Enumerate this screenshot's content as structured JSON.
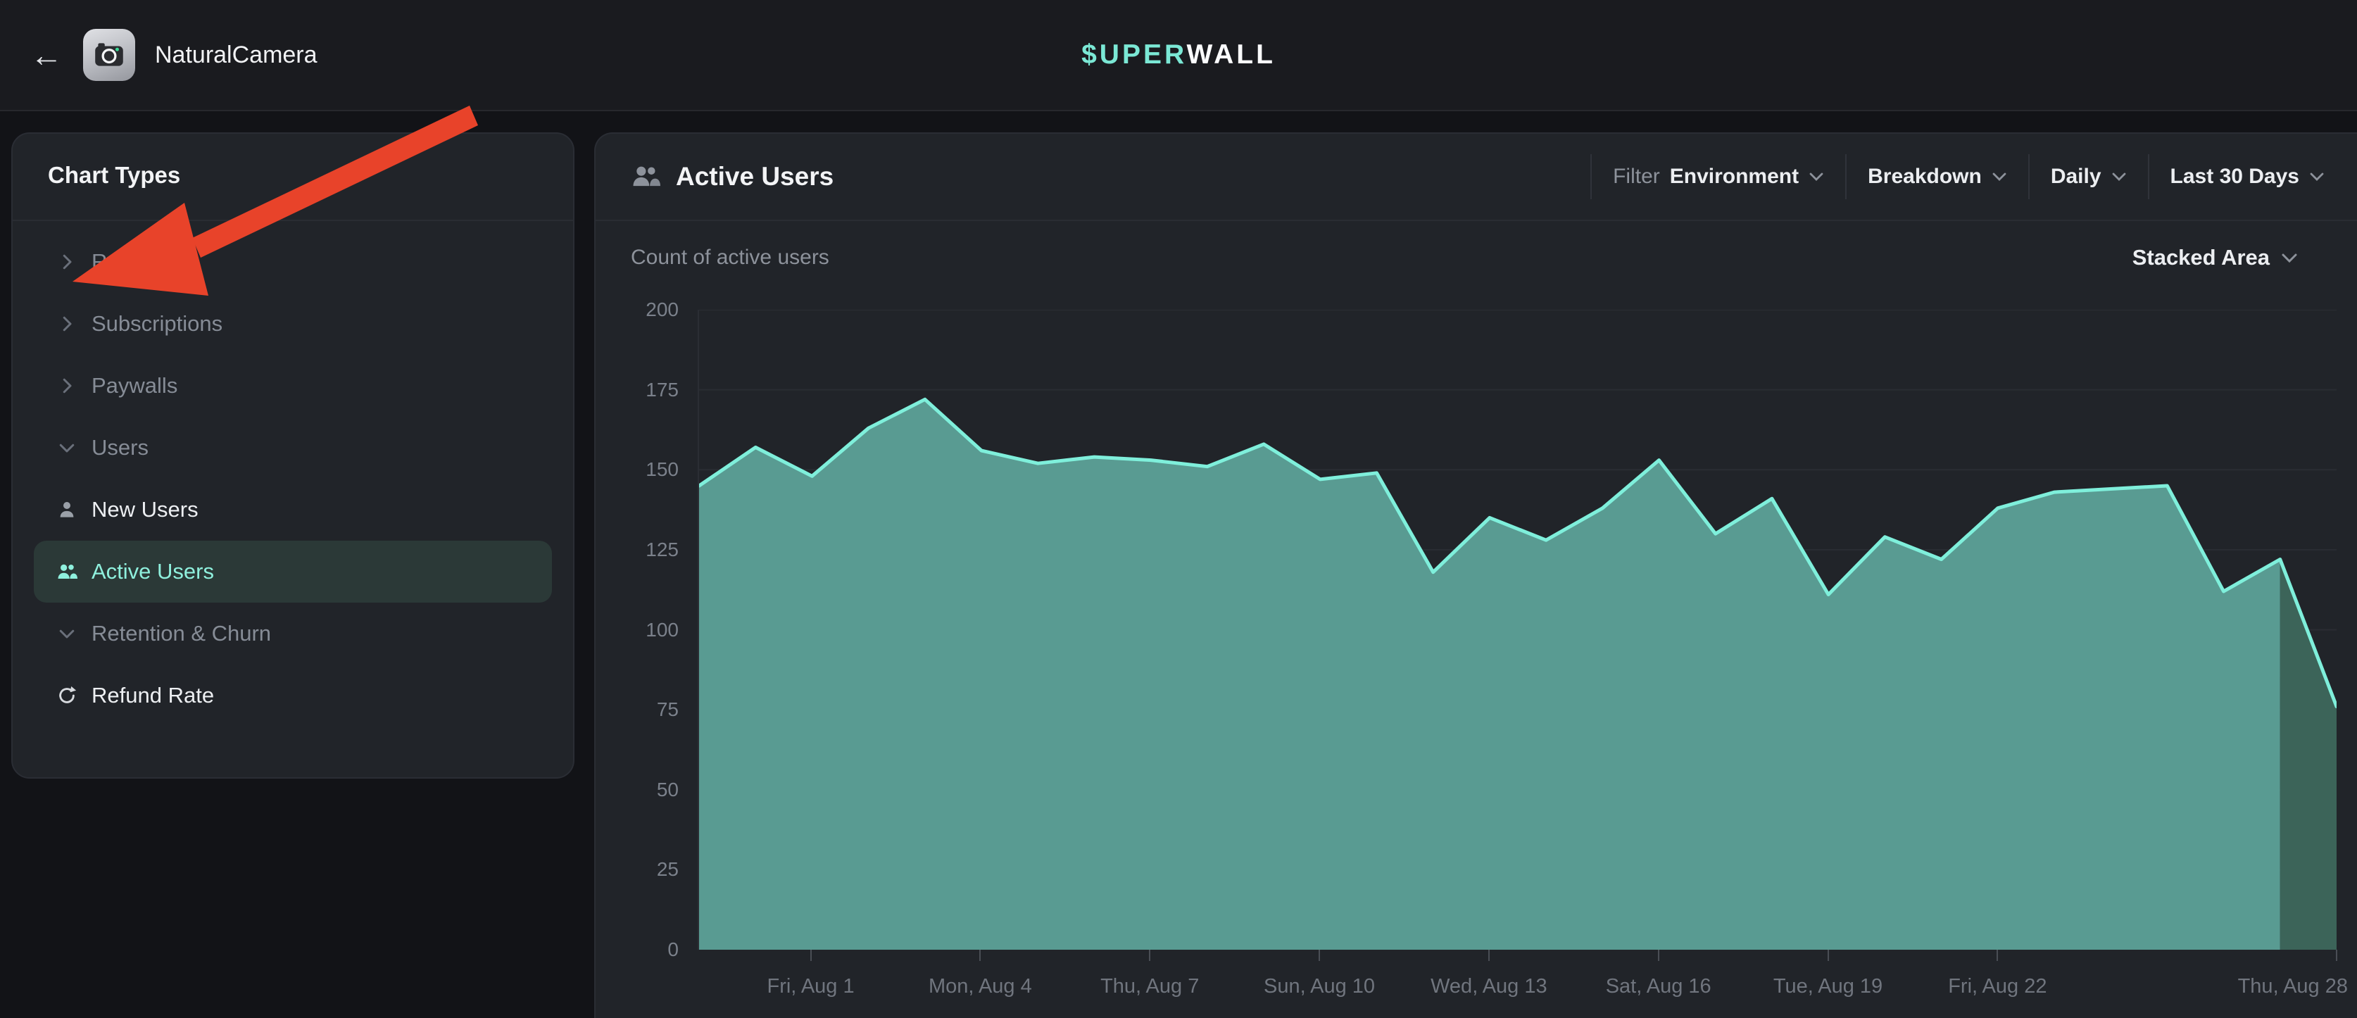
{
  "topbar": {
    "back_label": "←",
    "app_name": "NaturalCamera",
    "logo_prefix": "$UPER",
    "logo_suffix": "WALL"
  },
  "sidebar": {
    "title": "Chart Types",
    "items": [
      {
        "label": "Revenue",
        "icon": "chevron-right",
        "kind": "group",
        "selected": false
      },
      {
        "label": "Subscriptions",
        "icon": "chevron-right",
        "kind": "group",
        "selected": false
      },
      {
        "label": "Paywalls",
        "icon": "chevron-right",
        "kind": "group",
        "selected": false
      },
      {
        "label": "Users",
        "icon": "chevron-down",
        "kind": "group",
        "selected": false
      },
      {
        "label": "New Users",
        "icon": "person",
        "kind": "item",
        "selected": false
      },
      {
        "label": "Active Users",
        "icon": "people",
        "kind": "item",
        "selected": true
      },
      {
        "label": "Retention & Churn",
        "icon": "chevron-down",
        "kind": "group",
        "selected": false
      },
      {
        "label": "Refund Rate",
        "icon": "refresh",
        "kind": "item",
        "selected": false
      }
    ]
  },
  "main": {
    "title": "Active Users",
    "subtitle": "Count of active users",
    "controls": [
      {
        "prefix": "Filter",
        "label": "Environment",
        "chevron": true
      },
      {
        "prefix": "",
        "label": "Breakdown",
        "chevron": true
      },
      {
        "prefix": "",
        "label": "Daily",
        "chevron": true
      },
      {
        "prefix": "",
        "label": "Last 30 Days",
        "chevron": true
      }
    ],
    "chart_style_selector": {
      "label": "Stacked Area",
      "chevron": true
    }
  },
  "annotation": {
    "type": "arrow",
    "color": "#e8432a",
    "points_at": "Revenue sidebar item"
  },
  "chart_data": {
    "type": "area",
    "title": "Count of active users",
    "legend": false,
    "grid": true,
    "ylim": [
      0,
      200
    ],
    "yticks": [
      0,
      25,
      50,
      75,
      100,
      125,
      150,
      175,
      200
    ],
    "series": [
      {
        "name": "Active Users",
        "x": [
          "Jul 30",
          "Jul 31",
          "Aug 1",
          "Aug 2",
          "Aug 3",
          "Aug 4",
          "Aug 5",
          "Aug 6",
          "Aug 7",
          "Aug 8",
          "Aug 9",
          "Aug 10",
          "Aug 11",
          "Aug 12",
          "Aug 13",
          "Aug 14",
          "Aug 15",
          "Aug 16",
          "Aug 17",
          "Aug 18",
          "Aug 19",
          "Aug 20",
          "Aug 21",
          "Aug 22",
          "Aug 23",
          "Aug 24",
          "Aug 25",
          "Aug 26",
          "Aug 27",
          "Aug 28"
        ],
        "values": [
          145,
          157,
          148,
          163,
          172,
          156,
          152,
          154,
          153,
          151,
          158,
          147,
          149,
          118,
          135,
          128,
          138,
          153,
          130,
          141,
          111,
          129,
          122,
          138,
          143,
          144,
          145,
          112,
          122,
          76
        ]
      }
    ],
    "xticks": [
      {
        "index": 2,
        "label": "Fri, Aug 1"
      },
      {
        "index": 5,
        "label": "Mon, Aug 4"
      },
      {
        "index": 8,
        "label": "Thu, Aug 7"
      },
      {
        "index": 11,
        "label": "Sun, Aug 10"
      },
      {
        "index": 14,
        "label": "Wed, Aug 13"
      },
      {
        "index": 17,
        "label": "Sat, Aug 16"
      },
      {
        "index": 20,
        "label": "Tue, Aug 19"
      },
      {
        "index": 23,
        "label": "Fri, Aug 22"
      },
      {
        "index": 29,
        "label": "Thu, Aug 28"
      }
    ],
    "partial_start_index": 28,
    "colors": {
      "area": "#599b92",
      "area_partial": "#3c6459",
      "line": "#7fefdb",
      "grid": "#2a2d33",
      "axis_label": "#7b818b"
    }
  }
}
